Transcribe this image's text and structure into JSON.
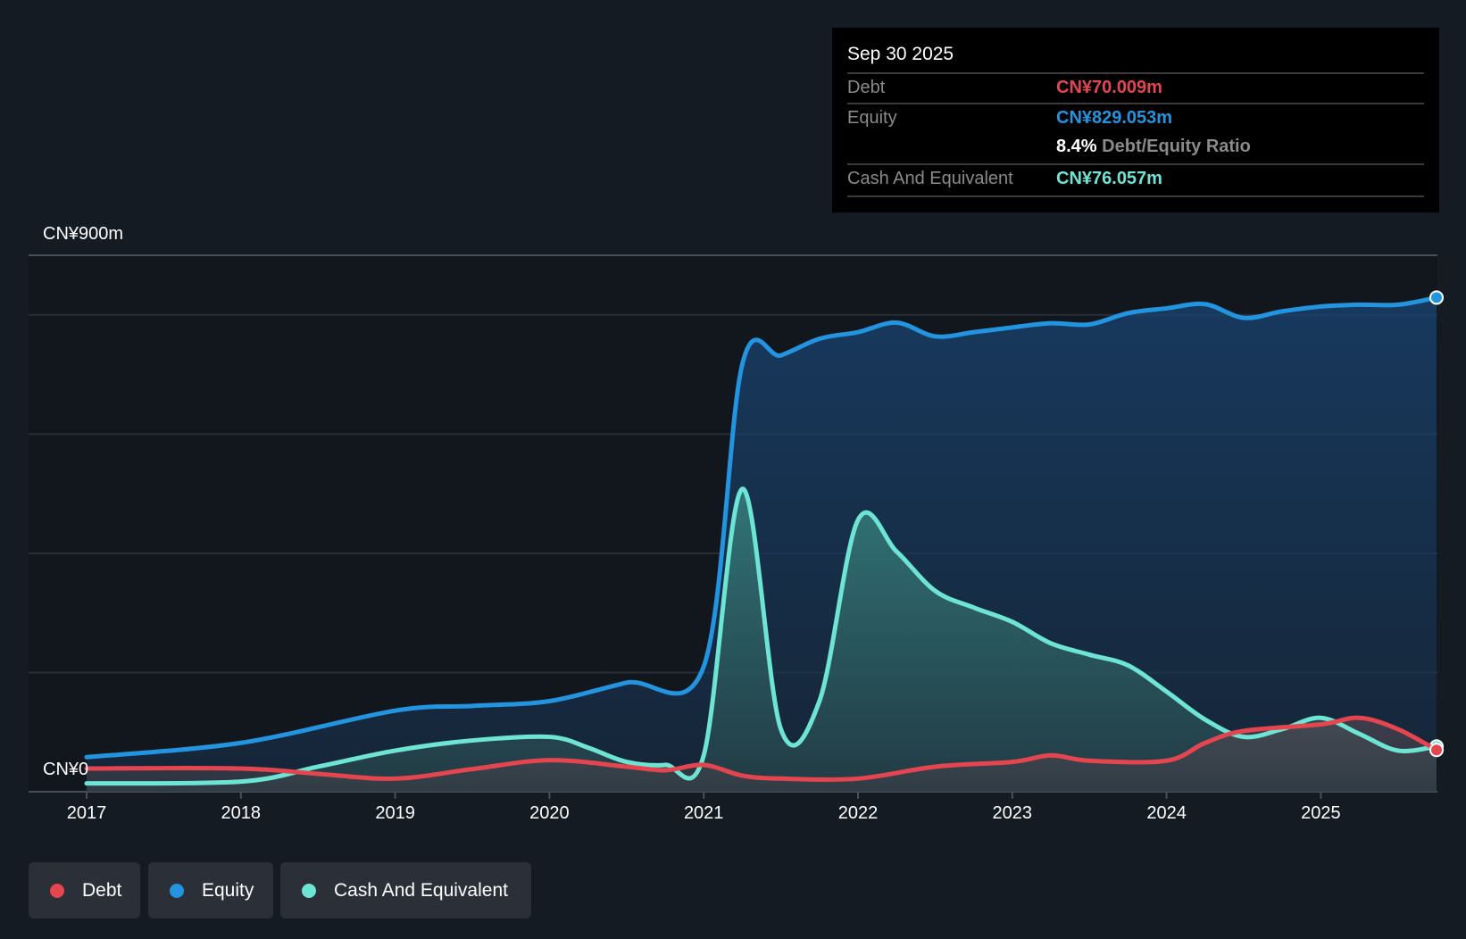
{
  "colors": {
    "debt": "#e5454f",
    "equity": "#2394df",
    "cash": "#6ee5d4"
  },
  "tooltip": {
    "date": "Sep 30 2025",
    "debt_label": "Debt",
    "debt_value": "CN¥70.009m",
    "equity_label": "Equity",
    "equity_value": "CN¥829.053m",
    "ratio_value": "8.4%",
    "ratio_label": "Debt/Equity Ratio",
    "cash_label": "Cash And Equivalent",
    "cash_value": "CN¥76.057m"
  },
  "legend": [
    {
      "label": "Debt"
    },
    {
      "label": "Equity"
    },
    {
      "label": "Cash And Equivalent"
    }
  ],
  "chart_data": {
    "type": "area",
    "y_top_label": "CN¥900m",
    "y_bottom_label": "CN¥0",
    "ylim": [
      0,
      900
    ],
    "xlim": [
      2016.95,
      2025.75
    ],
    "gridlines": [
      200,
      400,
      600,
      800,
      900
    ],
    "xticks": [
      "2017",
      "2018",
      "2019",
      "2020",
      "2021",
      "2022",
      "2023",
      "2024",
      "2025"
    ],
    "series": [
      {
        "name": "Equity",
        "x": [
          2017,
          2018,
          2019,
          2019.5,
          2020,
          2020.5,
          2021,
          2021.25,
          2021.5,
          2021.75,
          2022,
          2022.25,
          2022.5,
          2022.75,
          2023,
          2023.25,
          2023.5,
          2023.75,
          2024,
          2024.25,
          2024.5,
          2024.75,
          2025,
          2025.25,
          2025.5,
          2025.75
        ],
        "values": [
          58,
          82,
          136,
          144,
          152,
          183,
          210,
          717,
          732,
          760,
          771,
          787,
          764,
          771,
          779,
          786,
          784,
          803,
          811,
          818,
          795,
          806,
          814,
          817,
          817,
          829
        ]
      },
      {
        "name": "Cash And Equivalent",
        "x": [
          2017,
          2018,
          2018.5,
          2019,
          2019.5,
          2020,
          2020.25,
          2020.5,
          2020.75,
          2021,
          2021.25,
          2021.5,
          2021.75,
          2022,
          2022.25,
          2022.5,
          2022.75,
          2023,
          2023.25,
          2023.5,
          2023.75,
          2024,
          2024.25,
          2024.5,
          2024.75,
          2025,
          2025.25,
          2025.5,
          2025.75
        ],
        "values": [
          14,
          17,
          42,
          69,
          86,
          92,
          74,
          50,
          45,
          61,
          508,
          105,
          152,
          456,
          403,
          337,
          309,
          285,
          249,
          230,
          212,
          168,
          121,
          92,
          105,
          124,
          97,
          69,
          76
        ]
      },
      {
        "name": "Debt",
        "x": [
          2017,
          2018,
          2018.5,
          2019,
          2019.5,
          2020,
          2020.5,
          2020.75,
          2021,
          2021.25,
          2021.5,
          2022,
          2022.5,
          2023,
          2023.25,
          2023.5,
          2024,
          2024.25,
          2024.5,
          2025,
          2025.25,
          2025.5,
          2025.75
        ],
        "values": [
          39,
          39,
          30,
          22,
          38,
          53,
          42,
          36,
          45,
          27,
          22,
          22,
          42,
          50,
          61,
          52,
          52,
          82,
          102,
          113,
          124,
          105,
          70
        ]
      }
    ]
  }
}
